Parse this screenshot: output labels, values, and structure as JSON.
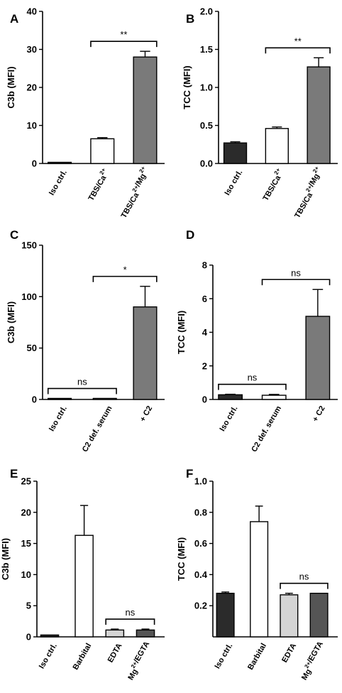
{
  "chart_data": [
    {
      "type": "bar",
      "panel": "A",
      "ylabel": "C3b (MFI)",
      "ylim": [
        0,
        40
      ],
      "ticks": [
        "0",
        "10",
        "20",
        "30",
        "40"
      ],
      "tick_values": [
        0,
        10,
        20,
        30,
        40
      ],
      "categories": [
        "Iso ctrl.",
        "TBS/Ca",
        "TBS/Ca /Mg"
      ],
      "superscripts": [
        [],
        [
          "2+"
        ],
        [
          "2+",
          "2+"
        ]
      ],
      "values": [
        0.3,
        6.5,
        28.0
      ],
      "errors": [
        0,
        0.3,
        1.5
      ],
      "fills": [
        "#2b2b2b",
        "#ffffff",
        "#7a7a7a"
      ],
      "sig": [
        {
          "from": 1,
          "to": 2,
          "label": "**"
        }
      ]
    },
    {
      "type": "bar",
      "panel": "B",
      "ylabel": "TCC (MFI)",
      "ylim": [
        0,
        2.0
      ],
      "ticks": [
        "0.0",
        "0.5",
        "1.0",
        "1.5",
        "2.0"
      ],
      "tick_values": [
        0,
        0.5,
        1.0,
        1.5,
        2.0
      ],
      "categories": [
        "Iso ctrl.",
        "TBS/Ca",
        "TBS/Ca /Mg"
      ],
      "superscripts": [
        [],
        [
          "2+"
        ],
        [
          "2+",
          "2+"
        ]
      ],
      "values": [
        0.27,
        0.46,
        1.27
      ],
      "errors": [
        0.015,
        0.02,
        0.12
      ],
      "fills": [
        "#2b2b2b",
        "#ffffff",
        "#7a7a7a"
      ],
      "sig": [
        {
          "from": 1,
          "to": 2,
          "label": "**"
        }
      ]
    },
    {
      "type": "bar",
      "panel": "C",
      "ylabel": "C3b (MFI)",
      "ylim": [
        0,
        150
      ],
      "ticks": [
        "0",
        "50",
        "100",
        "150"
      ],
      "tick_values": [
        0,
        50,
        100,
        150
      ],
      "categories": [
        "Iso ctrl.",
        "C2 def. serum",
        "+ C2"
      ],
      "superscripts": [
        [],
        [],
        []
      ],
      "values": [
        0.5,
        1.0,
        90.0
      ],
      "errors": [
        0,
        0,
        20.0
      ],
      "fills": [
        "#2b2b2b",
        "#ffffff",
        "#7a7a7a"
      ],
      "sig": [
        {
          "from": 0,
          "to": 1,
          "label": "ns"
        },
        {
          "from": 1,
          "to": 2,
          "label": "*"
        }
      ]
    },
    {
      "type": "bar",
      "panel": "D",
      "ylabel": "TCC (MFI)",
      "ylim": [
        0,
        8
      ],
      "ticks": [
        "0",
        "2",
        "4",
        "6",
        "8"
      ],
      "tick_values": [
        0,
        2,
        4,
        6,
        8
      ],
      "categories": [
        "Iso ctrl.",
        "C2 def. serum",
        "+ C2"
      ],
      "superscripts": [
        [],
        [],
        []
      ],
      "values": [
        0.28,
        0.25,
        4.95
      ],
      "errors": [
        0.03,
        0.05,
        1.6
      ],
      "fills": [
        "#2b2b2b",
        "#ffffff",
        "#7a7a7a"
      ],
      "sig": [
        {
          "from": 0,
          "to": 1,
          "label": "ns"
        },
        {
          "from": 1,
          "to": 2,
          "label": "ns"
        }
      ]
    },
    {
      "type": "bar",
      "panel": "E",
      "ylabel": "C3b (MFI)",
      "ylim": [
        0,
        25
      ],
      "ticks": [
        "0",
        "5",
        "10",
        "15",
        "20",
        "25"
      ],
      "tick_values": [
        0,
        5,
        10,
        15,
        20,
        25
      ],
      "categories": [
        "Iso ctrl.",
        "Barbital",
        "EDTA",
        "Mg /EGTA"
      ],
      "superscripts": [
        [],
        [],
        [],
        [
          "2+"
        ]
      ],
      "values": [
        0.3,
        16.3,
        1.1,
        1.1
      ],
      "errors": [
        0,
        4.8,
        0.15,
        0.15
      ],
      "fills": [
        "#2b2b2b",
        "#ffffff",
        "#d4d4d4",
        "#555555"
      ],
      "sig": [
        {
          "from": 2,
          "to": 3,
          "label": "ns"
        }
      ]
    },
    {
      "type": "bar",
      "panel": "F",
      "ylabel": "TCC (MFI)",
      "ylim": [
        0,
        1.0
      ],
      "ticks": [
        "0.2",
        "0.4",
        "0.6",
        "0.8",
        "1.0"
      ],
      "tick_values": [
        0.2,
        0.4,
        0.6,
        0.8,
        1.0
      ],
      "categories": [
        "Iso ctrl.",
        "Barbital",
        "EDTA",
        "Mg /EGTA"
      ],
      "superscripts": [
        [],
        [],
        [],
        [
          "2+"
        ]
      ],
      "values": [
        0.28,
        0.74,
        0.27,
        0.28
      ],
      "errors": [
        0.008,
        0.1,
        0.01,
        0
      ],
      "fills": [
        "#2b2b2b",
        "#ffffff",
        "#d4d4d4",
        "#555555"
      ],
      "sig": [
        {
          "from": 2,
          "to": 3,
          "label": "ns"
        }
      ]
    }
  ]
}
